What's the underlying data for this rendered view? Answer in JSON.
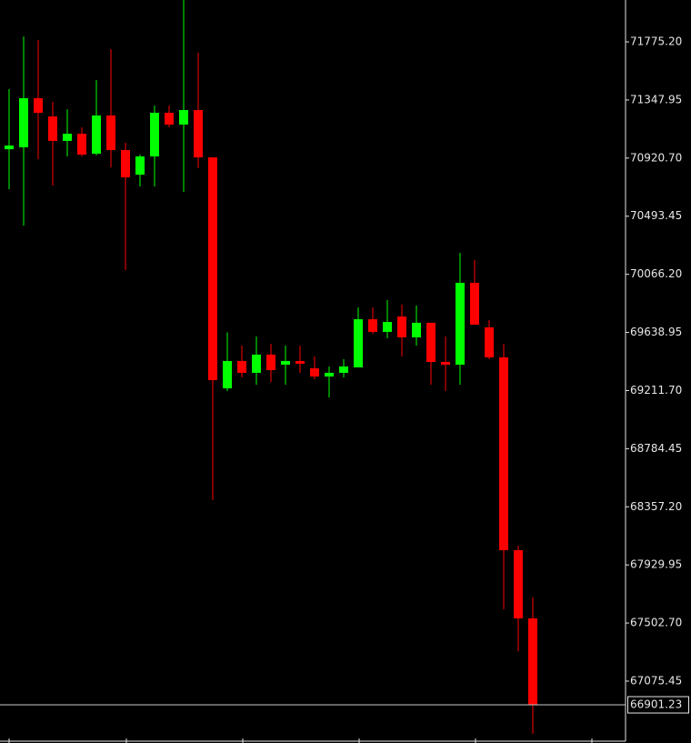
{
  "chart_data": {
    "type": "candlestick",
    "categories": [
      null,
      null,
      null,
      null,
      null,
      null,
      null,
      null,
      null,
      null,
      null,
      null,
      null,
      null,
      null,
      null,
      null,
      null,
      null,
      null,
      null,
      null,
      null,
      null,
      null,
      null,
      null,
      null,
      null,
      null,
      null,
      null,
      null,
      null,
      null,
      null,
      null
    ],
    "open": [
      70986,
      71000,
      71361,
      71227,
      71047,
      71100,
      70953,
      71234,
      70980,
      70799,
      70933,
      71254,
      71167,
      71274,
      70926,
      69228,
      69429,
      69342,
      69476,
      69402,
      69429,
      69375,
      69315,
      69342,
      69382,
      69736,
      69643,
      69756,
      69603,
      69710,
      69422,
      69402,
      70004,
      69676,
      69456,
      68038,
      67537
    ],
    "high": [
      71428,
      71815,
      71789,
      71334,
      71280,
      71147,
      71494,
      71722,
      71033,
      70946,
      71307,
      71307,
      72083,
      71695,
      70926,
      69639,
      69542,
      69609,
      69556,
      69542,
      69542,
      69462,
      69389,
      69442,
      69823,
      69823,
      69877,
      69843,
      69837,
      69710,
      69609,
      70224,
      70171,
      69730,
      69556,
      68072,
      67691
    ],
    "low": [
      70692,
      70425,
      70913,
      70719,
      70933,
      70933,
      70940,
      70853,
      70097,
      70712,
      70712,
      71147,
      70672,
      70846,
      68406,
      69208,
      69308,
      69255,
      69275,
      69255,
      69342,
      69295,
      69161,
      69308,
      69382,
      69629,
      69596,
      69462,
      69542,
      69255,
      69208,
      69255,
      69696,
      69442,
      67604,
      67296,
      66688
    ],
    "close": [
      71013,
      71361,
      71254,
      71047,
      71100,
      70946,
      71234,
      70980,
      70779,
      70933,
      71254,
      71167,
      71274,
      70926,
      69288,
      69429,
      69342,
      69476,
      69362,
      69429,
      69409,
      69315,
      69342,
      69389,
      69736,
      69643,
      69716,
      69603,
      69710,
      69422,
      69402,
      70004,
      69696,
      69456,
      68038,
      67537,
      66901.23
    ],
    "up_color": "#00ff00",
    "down_color": "#ff0000",
    "current_price": 66901.23,
    "ylim": [
      66634,
      72083
    ],
    "yticks": [
      {
        "value": 71775.2,
        "label": "71775.20"
      },
      71347.95,
      {
        "value": 70920.7,
        "label": "70920.70"
      },
      70493.45,
      {
        "value": 70066.2,
        "label": "70066.20"
      },
      69638.95,
      {
        "value": 69211.7,
        "label": "69211.70"
      },
      68784.45,
      {
        "value": 68357.2,
        "label": "68357.20"
      },
      67929.95,
      {
        "value": 67502.7,
        "label": "67502.70"
      },
      67075.45
    ]
  }
}
